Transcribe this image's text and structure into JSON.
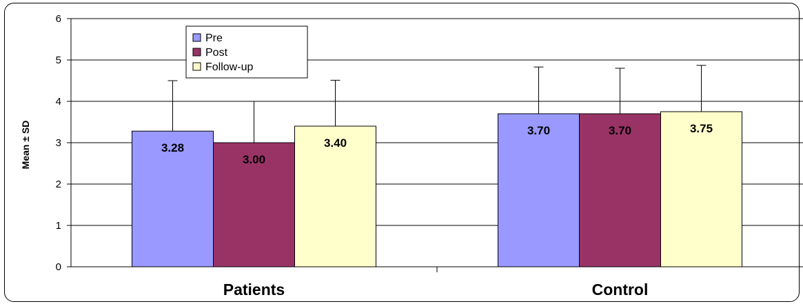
{
  "chart_data": {
    "type": "bar",
    "categories": [
      "Patients",
      "Control"
    ],
    "series": [
      {
        "name": "Pre",
        "values": [
          3.28,
          3.7
        ],
        "errors": [
          1.22,
          1.13
        ],
        "labels": [
          "3.28",
          "3.70"
        ],
        "color": "#9999ff"
      },
      {
        "name": "Post",
        "values": [
          3.0,
          3.7
        ],
        "errors": [
          1.0,
          1.1
        ],
        "labels": [
          "3.00",
          "3.70"
        ],
        "color": "#993366"
      },
      {
        "name": "Follow-up",
        "values": [
          3.4,
          3.75
        ],
        "errors": [
          1.11,
          1.12
        ],
        "labels": [
          "3.40",
          "3.75"
        ],
        "color": "#ffffcc"
      }
    ],
    "title": "",
    "xlabel": "",
    "ylabel": "Mean ± SD",
    "ylim": [
      0,
      6
    ],
    "yticks": [
      "0",
      "1",
      "2",
      "3",
      "4",
      "5",
      "6"
    ],
    "grid": true,
    "legend_position": "top-left"
  }
}
